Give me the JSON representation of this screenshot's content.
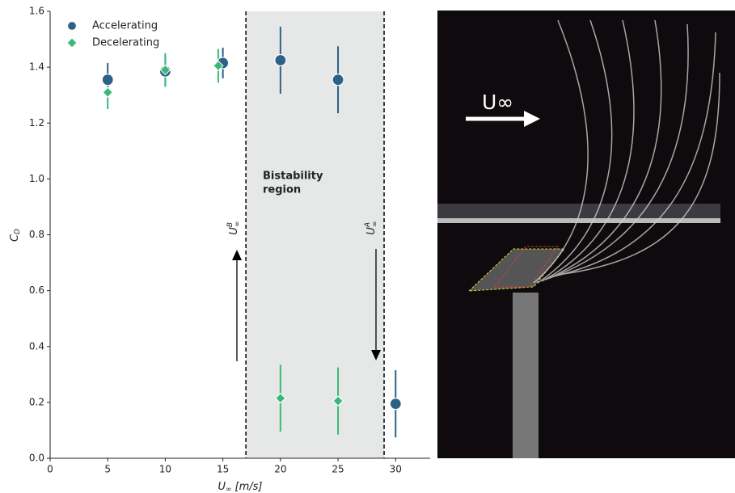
{
  "chart_data": {
    "type": "scatter",
    "xlabel": {
      "main": "U",
      "sub": "∞",
      "unit": "[m/s]"
    },
    "ylabel": {
      "main": "C",
      "sub": "D"
    },
    "xlim": [
      0,
      33
    ],
    "ylim": [
      0,
      1.6
    ],
    "xticks": [
      0,
      5,
      10,
      15,
      20,
      25,
      30
    ],
    "yticks": [
      {
        "value": 0,
        "label": "0.0"
      },
      {
        "value": 0.2,
        "label": "0.2"
      },
      {
        "value": 0.4,
        "label": "0.4"
      },
      {
        "value": 0.6,
        "label": "0.6"
      },
      {
        "value": 0.8,
        "label": "0.8"
      },
      {
        "value": 1.0,
        "label": "1.0"
      },
      {
        "value": 1.2,
        "label": "1.2"
      },
      {
        "value": 1.4,
        "label": "1.4"
      },
      {
        "value": 1.6,
        "label": "1.6"
      }
    ],
    "series": [
      {
        "name": "Accelerating",
        "color": "#2d6185",
        "marker": "circle",
        "x": [
          5,
          10,
          15,
          20,
          25,
          30
        ],
        "values": [
          1.355,
          1.385,
          1.415,
          1.425,
          1.355,
          0.195
        ],
        "errors": [
          0.06,
          0.055,
          0.055,
          0.12,
          0.12,
          0.12
        ]
      },
      {
        "name": "Decelerating",
        "color": "#3bb77a",
        "marker": "diamond",
        "x": [
          5,
          10,
          14.6,
          20,
          25
        ],
        "values": [
          1.31,
          1.39,
          1.405,
          0.215,
          0.205
        ],
        "errors": [
          0.06,
          0.06,
          0.06,
          0.12,
          0.12
        ]
      }
    ],
    "region": {
      "range": [
        17,
        29
      ],
      "color": "#e6e8e8",
      "label": [
        "Bistability",
        "region"
      ]
    },
    "thresholds": [
      {
        "main": "U",
        "sub": "∞",
        "sup": "B"
      },
      {
        "main": "U",
        "sub": "∞",
        "sup": "A"
      }
    ]
  },
  "photo": {
    "label": "U∞"
  }
}
